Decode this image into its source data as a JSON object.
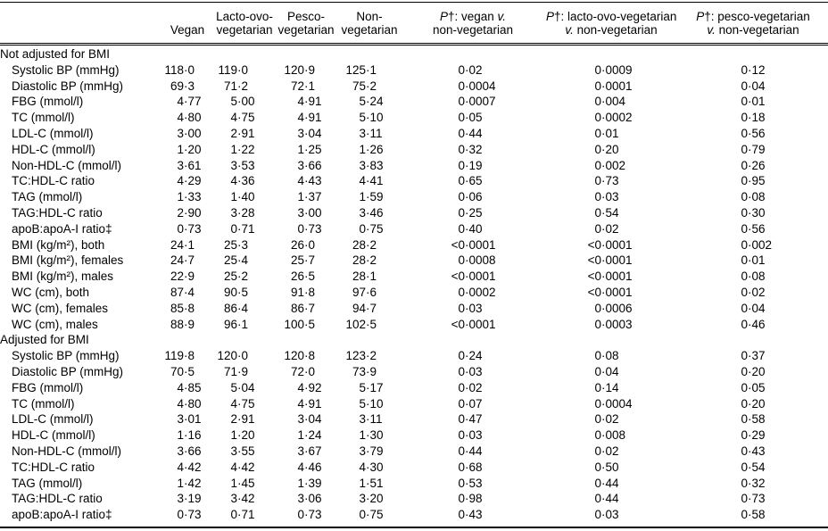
{
  "table": {
    "columns": [
      {
        "id": "rowlabel",
        "lines": []
      },
      {
        "id": "vegan",
        "lines": [
          "Vegan"
        ]
      },
      {
        "id": "lacto-ovo-vegetarian",
        "lines": [
          "Lacto-ovo-",
          "vegetarian"
        ]
      },
      {
        "id": "pesco-vegetarian",
        "lines": [
          "Pesco-",
          "vegetarian"
        ]
      },
      {
        "id": "non-vegetarian",
        "lines": [
          "Non-",
          "vegetarian"
        ]
      },
      {
        "id": "p-vegan-vs-nonveg",
        "lines": [
          "P†: vegan v.",
          "non-vegetarian"
        ]
      },
      {
        "id": "p-lacto-vs-nonveg",
        "lines": [
          "P†: lacto-ovo-vegetarian",
          "v. non-vegetarian"
        ]
      },
      {
        "id": "p-pesco-vs-nonveg",
        "lines": [
          "P†: pesco-vegetarian",
          "v. non-vegetarian"
        ]
      }
    ],
    "sections": [
      {
        "label": "Not adjusted for BMI",
        "rows": [
          {
            "label": "Systolic BP (mmHg)",
            "values": [
              "118·0",
              "119·0",
              "120·9",
              "125·1",
              "0·02",
              "0·0009",
              "0·12"
            ]
          },
          {
            "label": "Diastolic BP (mmHg)",
            "values": [
              "69·3",
              "71·2",
              "72·1",
              "75·2",
              "0·0004",
              "0·0001",
              "0·04"
            ]
          },
          {
            "label": "FBG (mmol/l)",
            "values": [
              "4·77",
              "5·00",
              "4·91",
              "5·24",
              "0·0007",
              "0·004",
              "0·01"
            ]
          },
          {
            "label": "TC (mmol/l)",
            "values": [
              "4·80",
              "4·75",
              "4·91",
              "5·10",
              "0·05",
              "0·0002",
              "0·18"
            ]
          },
          {
            "label": "LDL-C (mmol/l)",
            "values": [
              "3·00",
              "2·91",
              "3·04",
              "3·11",
              "0·44",
              "0·01",
              "0·56"
            ]
          },
          {
            "label": "HDL-C (mmol/l)",
            "values": [
              "1·20",
              "1·22",
              "1·25",
              "1·26",
              "0·32",
              "0·20",
              "0·79"
            ]
          },
          {
            "label": "Non-HDL-C (mmol/l)",
            "values": [
              "3·61",
              "3·53",
              "3·66",
              "3·83",
              "0·19",
              "0·002",
              "0·26"
            ]
          },
          {
            "label": "TC:HDL-C ratio",
            "values": [
              "4·29",
              "4·36",
              "4·43",
              "4·41",
              "0·65",
              "0·73",
              "0·95"
            ]
          },
          {
            "label": "TAG (mmol/l)",
            "values": [
              "1·33",
              "1·40",
              "1·37",
              "1·59",
              "0·06",
              "0·03",
              "0·08"
            ]
          },
          {
            "label": "TAG:HDL-C ratio",
            "values": [
              "2·90",
              "3·28",
              "3·00",
              "3·46",
              "0·25",
              "0·54",
              "0·30"
            ]
          },
          {
            "label": "apoB:apoA-I ratio‡",
            "values": [
              "0·73",
              "0·71",
              "0·73",
              "0·75",
              "0·40",
              "0·02",
              "0·56"
            ]
          },
          {
            "label": "BMI (kg/m²), both",
            "values": [
              "24·1",
              "25·3",
              "26·0",
              "28·2",
              "<0·0001",
              "<0·0001",
              "0·002"
            ]
          },
          {
            "label": "BMI (kg/m²), females",
            "values": [
              "24·7",
              "25·4",
              "25·7",
              "28·2",
              "0·0008",
              "<0·0001",
              "0·01"
            ]
          },
          {
            "label": "BMI (kg/m²), males",
            "values": [
              "22·9",
              "25·2",
              "26·5",
              "28·1",
              "<0·0001",
              "<0·0001",
              "0·08"
            ]
          },
          {
            "label": "WC (cm), both",
            "values": [
              "87·4",
              "90·5",
              "91·8",
              "97·6",
              "0·0002",
              "<0·0001",
              "0·02"
            ]
          },
          {
            "label": "WC (cm), females",
            "values": [
              "85·8",
              "86·4",
              "86·7",
              "94·7",
              "0·03",
              "0·0006",
              "0·04"
            ]
          },
          {
            "label": "WC (cm), males",
            "values": [
              "88·9",
              "96·1",
              "100·5",
              "102·5",
              "<0·0001",
              "0·0003",
              "0·46"
            ]
          }
        ]
      },
      {
        "label": "Adjusted for BMI",
        "rows": [
          {
            "label": "Systolic BP (mmHg)",
            "values": [
              "119·8",
              "120·0",
              "120·8",
              "123·2",
              "0·24",
              "0·08",
              "0·37"
            ]
          },
          {
            "label": "Diastolic BP (mmHg)",
            "values": [
              "70·5",
              "71·9",
              "72·0",
              "73·9",
              "0·03",
              "0·04",
              "0·20"
            ]
          },
          {
            "label": "FBG (mmol/l)",
            "values": [
              "4·85",
              "5·04",
              "4·92",
              "5·17",
              "0·02",
              "0·14",
              "0·05"
            ]
          },
          {
            "label": "TC (mmol/l)",
            "values": [
              "4·80",
              "4·75",
              "4·91",
              "5·10",
              "0·07",
              "0·0004",
              "0·20"
            ]
          },
          {
            "label": "LDL-C (mmol/l)",
            "values": [
              "3·01",
              "2·91",
              "3·04",
              "3·11",
              "0·47",
              "0·02",
              "0·58"
            ]
          },
          {
            "label": "HDL-C (mmol/l)",
            "values": [
              "1·16",
              "1·20",
              "1·24",
              "1·30",
              "0·03",
              "0·008",
              "0·29"
            ]
          },
          {
            "label": "Non-HDL-C (mmol/l)",
            "values": [
              "3·66",
              "3·55",
              "3·67",
              "3·79",
              "0·44",
              "0·02",
              "0·43"
            ]
          },
          {
            "label": "TC:HDL-C ratio",
            "values": [
              "4·42",
              "4·42",
              "4·46",
              "4·30",
              "0·68",
              "0·50",
              "0·54"
            ]
          },
          {
            "label": "TAG (mmol/l)",
            "values": [
              "1·42",
              "1·45",
              "1·39",
              "1·51",
              "0·53",
              "0·44",
              "0·32"
            ]
          },
          {
            "label": "TAG:HDL-C ratio",
            "values": [
              "3·19",
              "3·42",
              "3·06",
              "3·20",
              "0·98",
              "0·44",
              "0·73"
            ]
          },
          {
            "label": "apoB:apoA-I ratio‡",
            "values": [
              "0·73",
              "0·71",
              "0·73",
              "0·75",
              "0·43",
              "0·03",
              "0·58"
            ]
          }
        ]
      }
    ]
  }
}
